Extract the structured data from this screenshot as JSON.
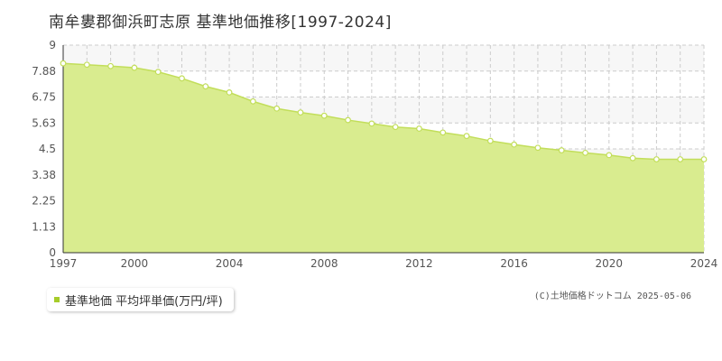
{
  "title": "南牟婁郡御浜町志原  基準地価推移[1997-2024]",
  "legend": {
    "label": "基準地価 平均坪単価(万円/坪)"
  },
  "credit": "(C)土地価格ドットコム 2025-05-06",
  "colors": {
    "fill": "#d9ec8f",
    "line": "#c2de5a",
    "marker_fill": "#ffffff",
    "band": "#f7f7f7",
    "grid": "#cccccc",
    "legend_marker": "#a6cc2a"
  },
  "chart_data": {
    "type": "area",
    "title": "南牟婁郡御浜町志原  基準地価推移[1997-2024]",
    "xlabel": "",
    "ylabel": "",
    "x": [
      1997,
      1998,
      1999,
      2000,
      2001,
      2002,
      2003,
      2004,
      2005,
      2006,
      2007,
      2008,
      2009,
      2010,
      2011,
      2012,
      2013,
      2014,
      2015,
      2016,
      2017,
      2018,
      2019,
      2020,
      2021,
      2022,
      2023,
      2024
    ],
    "series": [
      {
        "name": "基準地価 平均坪単価(万円/坪)",
        "values": [
          8.21,
          8.15,
          8.09,
          8.02,
          7.84,
          7.56,
          7.21,
          6.95,
          6.56,
          6.25,
          6.08,
          5.94,
          5.75,
          5.6,
          5.45,
          5.38,
          5.21,
          5.06,
          4.85,
          4.69,
          4.55,
          4.44,
          4.33,
          4.23,
          4.1,
          4.05,
          4.05,
          4.05
        ]
      }
    ],
    "ylim": [
      0,
      9
    ],
    "xlim": [
      1997,
      2024
    ],
    "y_ticks": [
      "0",
      "1.13",
      "2.25",
      "3.38",
      "4.5",
      "5.63",
      "6.75",
      "7.88",
      "9"
    ],
    "y_tick_values": [
      0,
      1.125,
      2.25,
      3.375,
      4.5,
      5.625,
      6.75,
      7.875,
      9
    ],
    "x_ticks": [
      "1997",
      "2000",
      "2004",
      "2008",
      "2012",
      "2016",
      "2020",
      "2024"
    ],
    "grid": true,
    "legend_position": "bottom-left"
  }
}
